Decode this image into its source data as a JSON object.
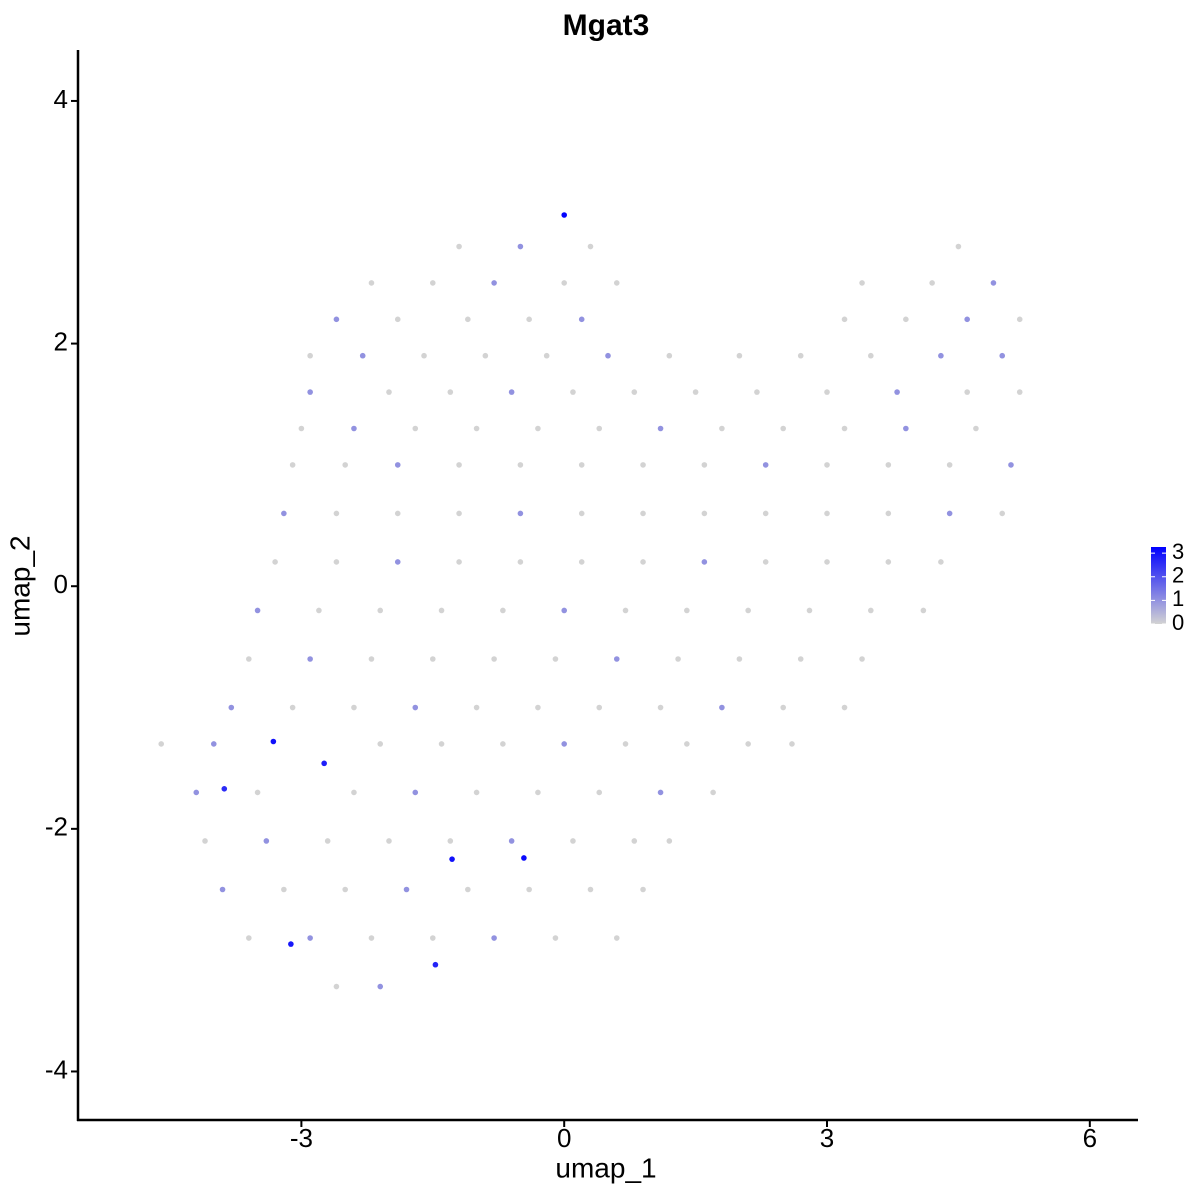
{
  "chart_data": {
    "type": "scatter",
    "title": "Mgat3",
    "x_label": "umap_1",
    "y_label": "umap_2",
    "xlim": [
      -5.55,
      6.55
    ],
    "xticks": [
      -3,
      0,
      3,
      6
    ],
    "ylim": [
      -4.4,
      4.42
    ],
    "yticks": [
      -4,
      -2,
      0,
      2,
      4
    ],
    "color_low": "#d3d3d3",
    "color_high": "#0000ff",
    "color_lim": [
      0,
      3.26
    ],
    "color_ticks": [
      0,
      1,
      2,
      3
    ],
    "x": [
      -1.2,
      -0.5,
      0.3,
      4.5,
      -2.2,
      -1.5,
      -0.8,
      0,
      0.6,
      3.4,
      4.2,
      4.9,
      -2.6,
      -1.9,
      -1.1,
      -0.4,
      0.2,
      3.2,
      3.9,
      4.6,
      5.2,
      -2.9,
      -2.3,
      -1.6,
      -0.9,
      -0.2,
      0.5,
      1.2,
      2.0,
      2.7,
      3.5,
      4.3,
      5.0,
      -2.9,
      -2.0,
      -1.3,
      -0.6,
      0.1,
      0.8,
      1.5,
      2.2,
      3.0,
      3.8,
      4.6,
      5.2,
      -3.0,
      -2.4,
      -1.7,
      -1.0,
      -0.3,
      0.4,
      1.1,
      1.8,
      2.5,
      3.2,
      3.9,
      4.7,
      -3.1,
      -2.5,
      -1.9,
      -1.2,
      -0.5,
      0.2,
      0.9,
      1.6,
      2.3,
      3.0,
      3.7,
      4.4,
      5.1,
      -3.2,
      -2.6,
      -1.9,
      -1.2,
      -0.5,
      0.2,
      0.9,
      1.6,
      2.3,
      3.0,
      3.7,
      4.4,
      5.0,
      -3.3,
      -2.6,
      -1.9,
      -1.2,
      -0.5,
      0.2,
      0.9,
      1.6,
      2.3,
      3.0,
      3.7,
      4.3,
      -3.5,
      -2.8,
      -2.1,
      -1.4,
      -0.7,
      0,
      0.7,
      1.4,
      2.1,
      2.8,
      3.5,
      4.1,
      -3.6,
      -2.9,
      -2.2,
      -1.5,
      -0.8,
      -0.1,
      0.6,
      1.3,
      2.0,
      2.7,
      3.4,
      -3.8,
      -3.1,
      -2.4,
      -1.7,
      -1.0,
      -0.3,
      0.4,
      1.1,
      1.8,
      2.5,
      3.2,
      -4.6,
      -4.0,
      -2.1,
      -1.4,
      -0.7,
      0,
      0.7,
      1.4,
      2.1,
      2.6,
      -4.2,
      -3.5,
      -2.4,
      -1.7,
      -1.0,
      -0.3,
      0.4,
      1.1,
      1.7,
      -4.1,
      -3.4,
      -2.7,
      -2.0,
      -1.3,
      -0.6,
      0.1,
      0.8,
      1.2,
      -3.9,
      -3.2,
      -2.5,
      -1.8,
      -1.1,
      -0.4,
      0.3,
      0.9,
      -3.6,
      -2.9,
      -2.2,
      -1.5,
      -0.8,
      -0.1,
      0.6,
      -2.6,
      -2.1,
      0,
      -3.32,
      -2.74,
      -3.88,
      -1.28,
      -0.46,
      -3.12,
      -1.47
    ],
    "values": [
      2.8,
      2.8,
      2.8,
      2.8,
      2.5,
      2.5,
      2.5,
      2.5,
      2.5,
      2.5,
      2.5,
      2.5,
      2.2,
      2.2,
      2.2,
      2.2,
      2.2,
      2.2,
      2.2,
      2.2,
      2.2,
      1.9,
      1.9,
      1.9,
      1.9,
      1.9,
      1.9,
      1.9,
      1.9,
      1.9,
      1.9,
      1.9,
      1.9,
      1.6,
      1.6,
      1.6,
      1.6,
      1.6,
      1.6,
      1.6,
      1.6,
      1.6,
      1.6,
      1.6,
      1.6,
      1.3,
      1.3,
      1.3,
      1.3,
      1.3,
      1.3,
      1.3,
      1.3,
      1.3,
      1.3,
      1.3,
      1.3,
      1.0,
      1.0,
      1.0,
      1.0,
      1.0,
      1.0,
      1.0,
      1.0,
      1.0,
      1.0,
      1.0,
      1.0,
      1.0,
      0.6,
      0.6,
      0.6,
      0.6,
      0.6,
      0.6,
      0.6,
      0.6,
      0.6,
      0.6,
      0.6,
      0.6,
      0.6,
      0.2,
      0.2,
      0.2,
      0.2,
      0.2,
      0.2,
      0.2,
      0.2,
      0.2,
      0.2,
      0.2,
      0.2,
      -0.2,
      -0.2,
      -0.2,
      -0.2,
      -0.2,
      -0.2,
      -0.2,
      -0.2,
      -0.2,
      -0.2,
      -0.2,
      -0.2,
      -0.6,
      -0.6,
      -0.6,
      -0.6,
      -0.6,
      -0.6,
      -0.6,
      -0.6,
      -0.6,
      -0.6,
      -0.6,
      -1.0,
      -1.0,
      -1.0,
      -1.0,
      -1.0,
      -1.0,
      -1.0,
      -1.0,
      -1.0,
      -1.0,
      -1.0,
      -1.3,
      -1.3,
      -1.3,
      -1.3,
      -1.3,
      -1.3,
      -1.3,
      -1.3,
      -1.3,
      -1.3,
      -1.7,
      -1.7,
      -1.7,
      -1.7,
      -1.7,
      -1.7,
      -1.7,
      -1.7,
      -1.7,
      -2.1,
      -2.1,
      -2.1,
      -2.1,
      -2.1,
      -2.1,
      -2.1,
      -2.1,
      -2.1,
      -2.5,
      -2.5,
      -2.5,
      -2.5,
      -2.5,
      -2.5,
      -2.5,
      -2.5,
      -2.9,
      -2.9,
      -2.9,
      -2.9,
      -2.9,
      -2.9,
      -2.9,
      -3.3,
      -3.3,
      3.06,
      -1.28,
      -1.46,
      -1.67,
      -2.25,
      -2.24,
      -2.95,
      -3.12
    ],
    "expression": [
      0,
      1,
      0,
      0,
      0,
      0,
      1,
      0,
      0,
      0,
      0,
      1,
      1,
      0,
      0,
      0,
      1,
      0,
      0,
      1,
      0,
      0,
      1,
      0,
      0,
      0,
      1,
      0,
      0,
      0,
      0,
      1,
      1,
      1,
      0,
      0,
      1,
      0,
      0,
      0,
      0,
      0,
      1,
      0,
      0,
      0,
      1,
      0,
      0,
      0,
      0,
      1,
      0,
      0,
      0,
      1,
      0,
      0,
      0,
      1,
      0,
      0,
      0,
      0,
      0,
      1,
      0,
      0,
      0,
      1,
      1,
      0,
      0,
      0,
      1,
      0,
      0,
      0,
      0,
      0,
      0,
      1,
      0,
      0,
      0,
      1,
      0,
      0,
      0,
      0,
      1,
      0,
      0,
      0,
      0,
      1,
      0,
      0,
      0,
      0,
      1,
      0,
      0,
      0,
      0,
      0,
      0,
      0,
      1,
      0,
      0,
      0,
      0,
      1,
      0,
      0,
      0,
      0,
      1,
      0,
      0,
      1,
      0,
      0,
      0,
      0,
      1,
      0,
      0,
      0,
      1,
      0,
      0,
      0,
      1,
      0,
      0,
      0,
      0,
      1,
      0,
      0,
      1,
      0,
      0,
      0,
      1,
      0,
      0,
      1,
      0,
      0,
      0,
      1,
      0,
      0,
      0,
      1,
      0,
      0,
      1,
      0,
      0,
      0,
      0,
      0,
      1,
      0,
      0,
      1,
      0,
      0,
      0,
      1,
      3.2,
      3.0,
      2.8,
      2.6,
      3.0,
      3.1,
      2.9,
      2.7
    ]
  }
}
